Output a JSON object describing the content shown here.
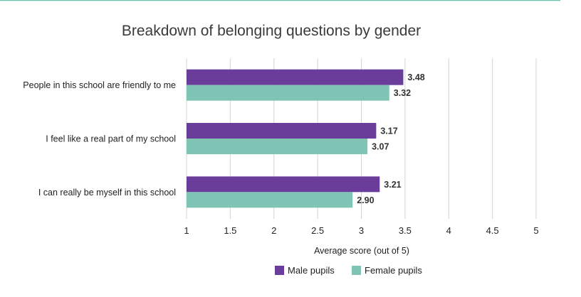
{
  "chart_data": {
    "type": "bar",
    "orientation": "horizontal",
    "title": "Breakdown of belonging questions by gender",
    "xlabel": "Average score (out of 5)",
    "ylabel": "",
    "xlim": [
      1,
      5
    ],
    "xticks": [
      "1",
      "1.5",
      "2",
      "2.5",
      "3",
      "3.5",
      "4",
      "4.5",
      "5"
    ],
    "categories": [
      "People in this school are friendly to me",
      "I feel like a real part of my school",
      "I can really be myself in this school"
    ],
    "series": [
      {
        "name": "Male pupils",
        "color": "#6a3d9a",
        "values": [
          3.48,
          3.17,
          3.21
        ],
        "labels": [
          "3.48",
          "3.17",
          "3.21"
        ]
      },
      {
        "name": "Female pupils",
        "color": "#7fc4b4",
        "values": [
          3.32,
          3.07,
          2.9
        ],
        "labels": [
          "3.32",
          "3.07",
          "2.90"
        ]
      }
    ],
    "grid": true,
    "legend": "bottom-center",
    "accent_line_color": "#6cc1ad"
  }
}
